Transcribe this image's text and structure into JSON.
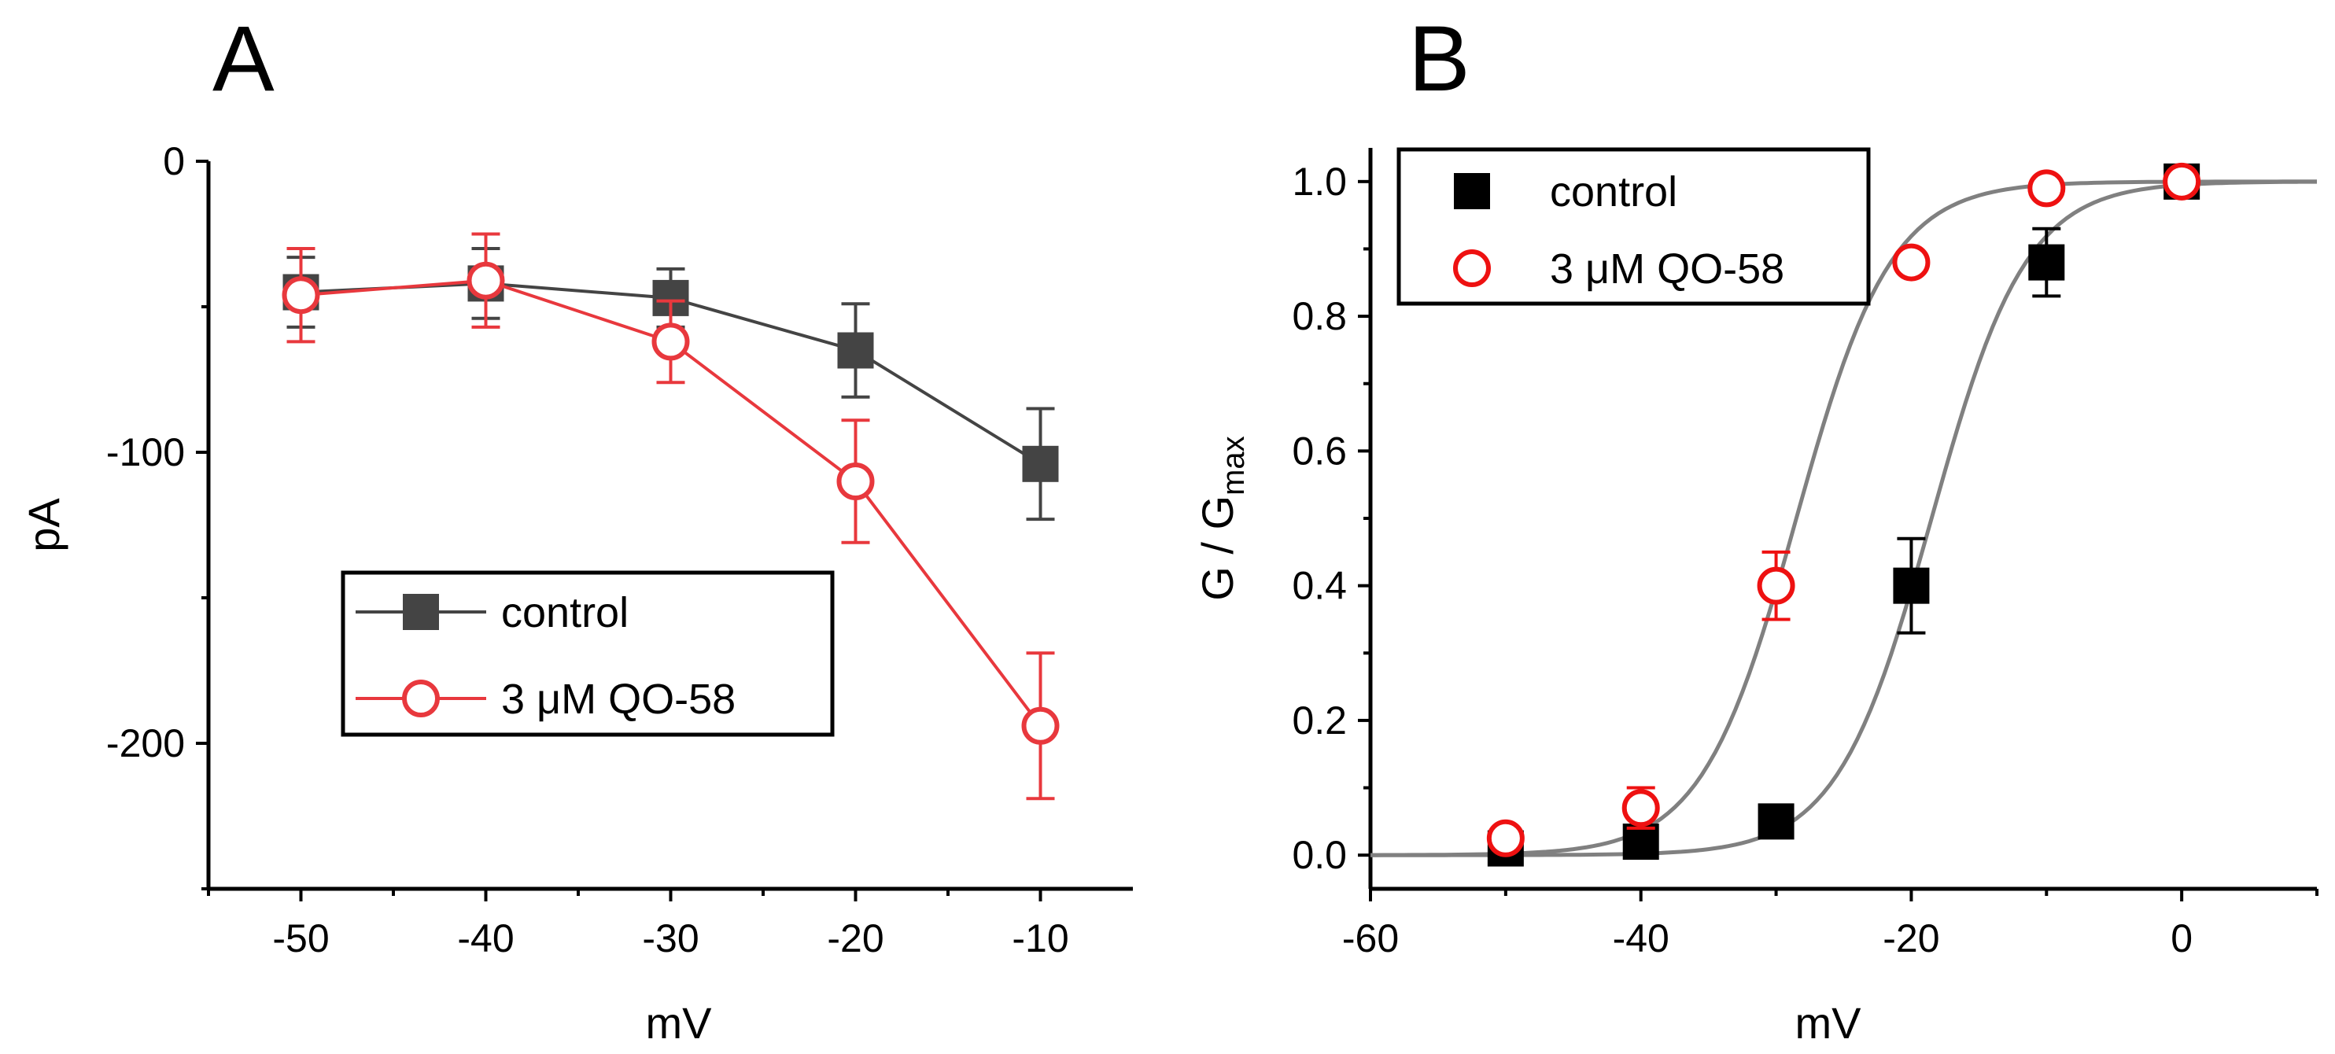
{
  "chart_data": [
    {
      "panel": "A",
      "type": "line",
      "title": "",
      "xlabel": "mV",
      "ylabel": "pA",
      "xlim": [
        -55,
        -5
      ],
      "ylim": [
        -250,
        0
      ],
      "x_ticks": [
        -50,
        -40,
        -30,
        -20,
        -10
      ],
      "y_ticks": [
        0,
        -100,
        -200
      ],
      "grid": false,
      "legend_position": "lower-center",
      "series": [
        {
          "name": "control",
          "marker": "filled-square",
          "color": "#444444",
          "x": [
            -50,
            -40,
            -30,
            -20,
            -10
          ],
          "y": [
            -45,
            -42,
            -47,
            -65,
            -104
          ],
          "error": [
            12,
            12,
            10,
            16,
            19
          ]
        },
        {
          "name": "3 μM QO-58",
          "marker": "open-circle",
          "color": "#e8383d",
          "x": [
            -50,
            -40,
            -30,
            -20,
            -10
          ],
          "y": [
            -46,
            -41,
            -62,
            -110,
            -194
          ],
          "error": [
            16,
            16,
            14,
            21,
            25
          ]
        }
      ]
    },
    {
      "panel": "B",
      "type": "scatter",
      "title": "",
      "xlabel": "mV",
      "ylabel": "G / G",
      "ylabel_subscript": "max",
      "xlim": [
        -60,
        10
      ],
      "ylim": [
        -0.05,
        1.05
      ],
      "x_ticks": [
        -60,
        -40,
        -20,
        0
      ],
      "y_ticks": [
        0.0,
        0.2,
        0.4,
        0.6,
        0.8,
        1.0
      ],
      "y_tick_labels": [
        "0.0",
        "0.2",
        "0.4",
        "0.6",
        "0.8",
        "1.0"
      ],
      "grid": false,
      "legend_position": "top-left",
      "fit": "boltzmann",
      "series": [
        {
          "name": "control",
          "marker": "filled-square",
          "color": "#000000",
          "x": [
            -50,
            -40,
            -30,
            -20,
            -10,
            0
          ],
          "y": [
            0.01,
            0.02,
            0.05,
            0.4,
            0.88,
            1.0
          ],
          "error": [
            0.01,
            0.01,
            0.01,
            0.07,
            0.05,
            0.01
          ],
          "fit_v_half": -18.5,
          "fit_slope": 3.5
        },
        {
          "name": "3 μM QO-58",
          "marker": "open-circle",
          "color": "#ee1111",
          "x": [
            -50,
            -40,
            -30,
            -20,
            -10,
            0
          ],
          "y": [
            0.025,
            0.07,
            0.4,
            0.88,
            0.99,
            1.0
          ],
          "error": [
            0.01,
            0.03,
            0.05,
            0.01,
            0.01,
            0.01
          ],
          "fit_v_half": -28.5,
          "fit_slope": 3.5
        }
      ]
    }
  ],
  "panel_labels": [
    "A",
    "B"
  ]
}
